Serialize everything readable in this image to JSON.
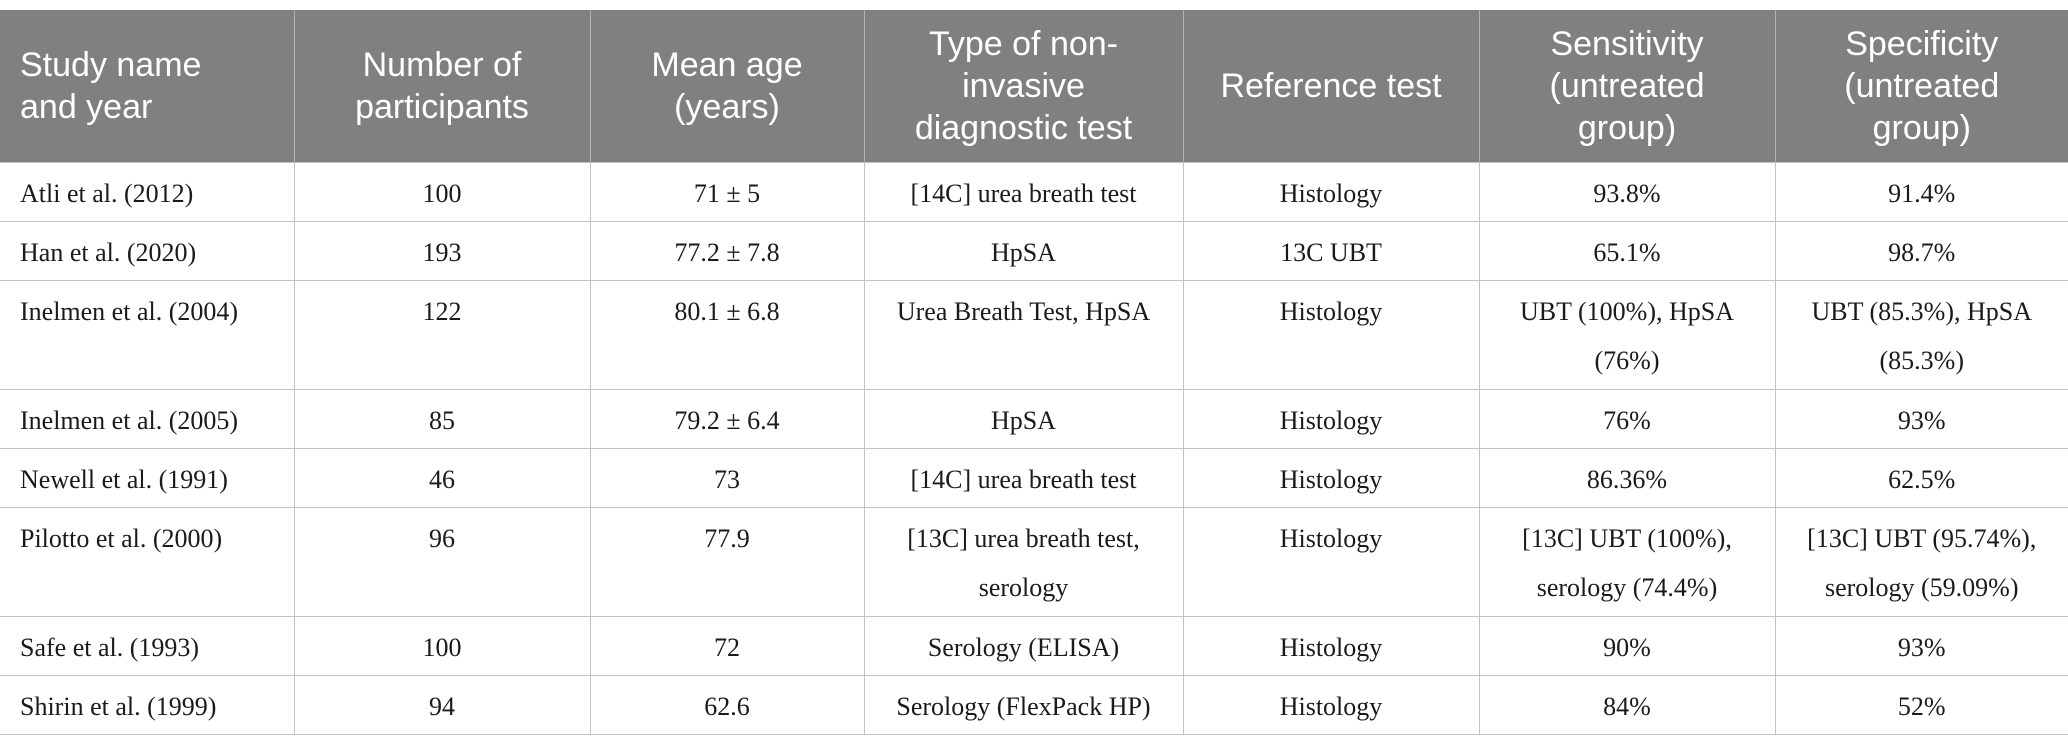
{
  "table": {
    "headers": [
      [
        "Study name",
        "and year"
      ],
      [
        "Number of",
        "participants"
      ],
      [
        "Mean age",
        "(years)"
      ],
      [
        "Type of non-",
        "invasive",
        "diagnostic test"
      ],
      [
        "Reference test"
      ],
      [
        "Sensitivity",
        "(untreated",
        "group)"
      ],
      [
        "Specificity",
        "(untreated",
        "group)"
      ]
    ],
    "rows": [
      {
        "study": "Atli et al. (2012)",
        "participants": "100",
        "age": "71 ± 5",
        "test": [
          "[14C] urea breath test"
        ],
        "reference": "Histology",
        "sensitivity": [
          "93.8%"
        ],
        "specificity": [
          "91.4%"
        ]
      },
      {
        "study": "Han et al. (2020)",
        "participants": "193",
        "age": "77.2 ± 7.8",
        "test": [
          "HpSA"
        ],
        "reference": "13C UBT",
        "sensitivity": [
          "65.1%"
        ],
        "specificity": [
          "98.7%"
        ]
      },
      {
        "study": "Inelmen et al. (2004)",
        "participants": "122",
        "age": "80.1 ± 6.8",
        "test": [
          "Urea Breath Test, HpSA"
        ],
        "reference": "Histology",
        "sensitivity": [
          "UBT (100%), HpSA",
          "(76%)"
        ],
        "specificity": [
          "UBT (85.3%), HpSA",
          "(85.3%)"
        ]
      },
      {
        "study": "Inelmen et al. (2005)",
        "participants": "85",
        "age": "79.2 ± 6.4",
        "test": [
          "HpSA"
        ],
        "reference": "Histology",
        "sensitivity": [
          "76%"
        ],
        "specificity": [
          "93%"
        ]
      },
      {
        "study": "Newell et al. (1991)",
        "participants": "46",
        "age": "73",
        "test": [
          "[14C] urea breath test"
        ],
        "reference": "Histology",
        "sensitivity": [
          "86.36%"
        ],
        "specificity": [
          "62.5%"
        ]
      },
      {
        "study": "Pilotto et al. (2000)",
        "participants": "96",
        "age": "77.9",
        "test": [
          "[13C] urea breath test,",
          "serology"
        ],
        "reference": "Histology",
        "sensitivity": [
          "[13C] UBT (100%),",
          "serology (74.4%)"
        ],
        "specificity": [
          "[13C] UBT (95.74%),",
          "serology (59.09%)"
        ]
      },
      {
        "study": "Safe et al. (1993)",
        "participants": "100",
        "age": "72",
        "test": [
          "Serology (ELISA)"
        ],
        "reference": "Histology",
        "sensitivity": [
          "90%"
        ],
        "specificity": [
          "93%"
        ]
      },
      {
        "study": "Shirin et al. (1999)",
        "participants": "94",
        "age": "62.6",
        "test": [
          "Serology (FlexPack HP)"
        ],
        "reference": "Histology",
        "sensitivity": [
          "84%"
        ],
        "specificity": [
          "52%"
        ]
      }
    ]
  }
}
